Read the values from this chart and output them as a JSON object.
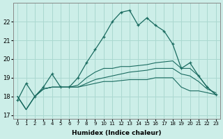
{
  "background_color": "#cceee8",
  "grid_color": "#aad8d0",
  "line_color": "#1a6b60",
  "xlim": [
    -0.5,
    23.5
  ],
  "ylim": [
    16.8,
    23.0
  ],
  "yticks": [
    17,
    18,
    19,
    20,
    21,
    22
  ],
  "xlabel": "Humidex (Indice chaleur)",
  "xtick_labels": [
    "0",
    "1",
    "2",
    "3",
    "4",
    "5",
    "6",
    "7",
    "8",
    "9",
    "10",
    "11",
    "12",
    "13",
    "14",
    "15",
    "16",
    "17",
    "18",
    "19",
    "20",
    "21",
    "22",
    "23"
  ],
  "series_main": [
    17.8,
    18.7,
    18.0,
    18.5,
    19.2,
    18.5,
    18.5,
    19.0,
    19.8,
    20.5,
    21.2,
    22.0,
    22.5,
    22.6,
    21.8,
    22.2,
    21.8,
    21.5,
    20.8,
    19.5,
    19.8,
    19.1,
    18.5,
    18.1
  ],
  "series_line1": [
    18.0,
    17.3,
    18.0,
    18.4,
    18.5,
    18.5,
    18.5,
    18.5,
    18.6,
    18.7,
    18.8,
    18.8,
    18.85,
    18.9,
    18.9,
    18.9,
    19.0,
    19.0,
    19.0,
    18.5,
    18.3,
    18.3,
    18.2,
    18.1
  ],
  "series_line2": [
    18.0,
    17.3,
    18.0,
    18.4,
    18.5,
    18.5,
    18.5,
    18.5,
    18.7,
    18.9,
    19.0,
    19.1,
    19.2,
    19.3,
    19.35,
    19.4,
    19.5,
    19.5,
    19.5,
    19.2,
    19.1,
    18.8,
    18.4,
    18.2
  ],
  "series_line3": [
    18.0,
    17.3,
    18.0,
    18.4,
    18.5,
    18.5,
    18.5,
    18.6,
    19.0,
    19.3,
    19.5,
    19.5,
    19.6,
    19.6,
    19.65,
    19.7,
    19.8,
    19.85,
    19.9,
    19.5,
    19.5,
    19.1,
    18.5,
    18.1
  ]
}
